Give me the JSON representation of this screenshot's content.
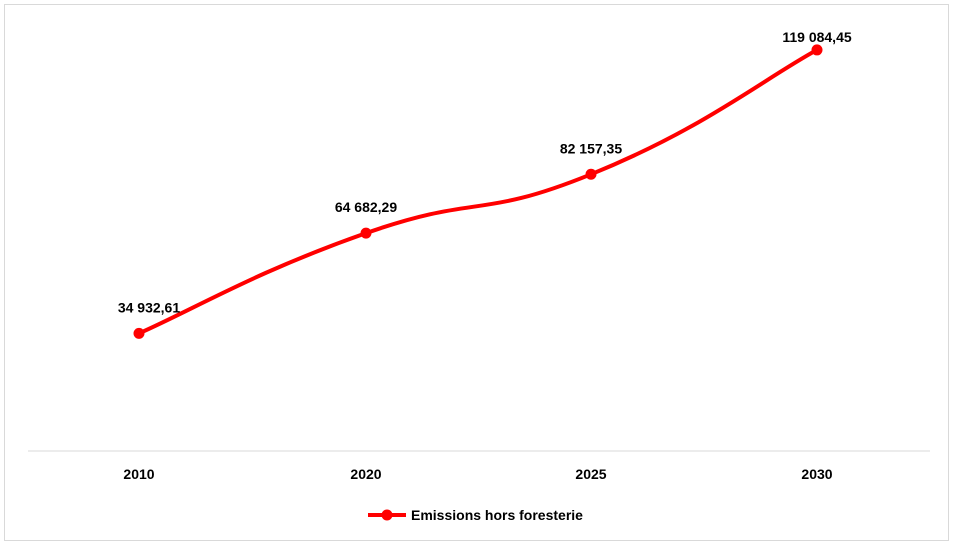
{
  "chart_data": {
    "type": "line",
    "categories": [
      "2010",
      "2020",
      "2025",
      "2030"
    ],
    "series": [
      {
        "name": "Emissions hors foresterie",
        "values": [
          34932.61,
          64682.29,
          82157.35,
          119084.45
        ],
        "labels": [
          "34 932,61",
          "64 682,29",
          "82 157,35",
          "119 084,45"
        ]
      }
    ],
    "title": "",
    "xlabel": "",
    "ylabel": "",
    "ylim": [
      0,
      125000
    ],
    "grid": false,
    "legend": "bottom",
    "colors": {
      "series": "#ff0000",
      "axis": "#d9d9d9",
      "border": "#d9d9d9"
    }
  }
}
